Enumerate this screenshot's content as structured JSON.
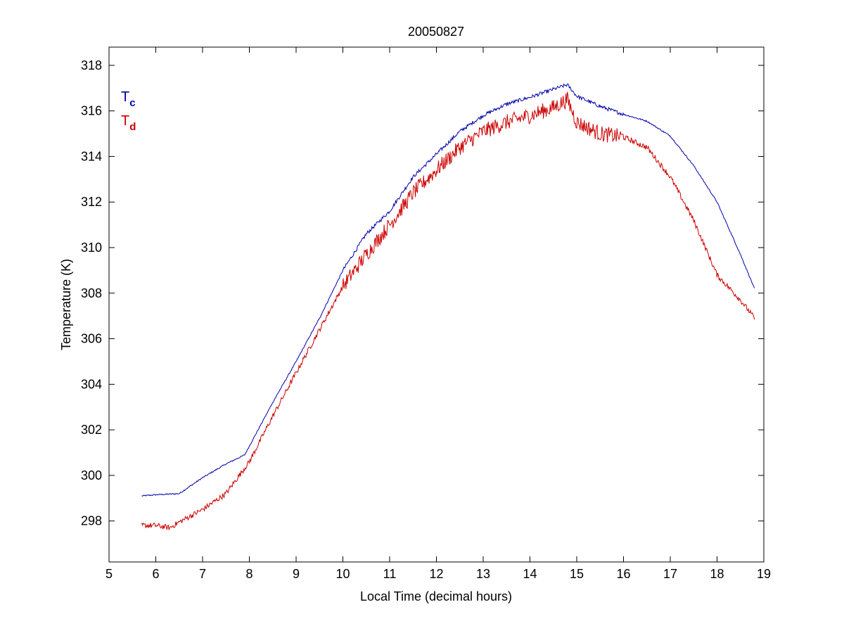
{
  "chart_data": {
    "type": "line",
    "title": "20050827",
    "xlabel": "Local Time (decimal hours)",
    "ylabel": "Temperature (K)",
    "xlim": [
      5,
      19
    ],
    "ylim": [
      296.2,
      318.8
    ],
    "xticks": [
      5,
      6,
      7,
      8,
      9,
      10,
      11,
      12,
      13,
      14,
      15,
      16,
      17,
      18,
      19
    ],
    "yticks": [
      298,
      300,
      302,
      304,
      306,
      308,
      310,
      312,
      314,
      316,
      318
    ],
    "grid": false,
    "legend": {
      "placement": "top-left",
      "entries": [
        {
          "main": "T",
          "sub": "c",
          "color": "#0000aa"
        },
        {
          "main": "T",
          "sub": "d",
          "color": "#cc0000"
        }
      ]
    },
    "series": [
      {
        "label": "Tc",
        "color": "#0000aa",
        "noise": 0.08,
        "x": [
          5.7,
          6.0,
          6.5,
          7.0,
          7.5,
          7.9,
          8.5,
          9.0,
          9.5,
          10.0,
          10.5,
          11.0,
          11.5,
          12.0,
          12.5,
          13.0,
          13.5,
          14.0,
          14.5,
          14.8,
          15.0,
          15.5,
          16.0,
          16.5,
          17.0,
          17.5,
          18.0,
          18.5,
          18.8
        ],
        "y": [
          299.1,
          299.15,
          299.2,
          299.9,
          300.5,
          300.9,
          303.2,
          305.0,
          306.9,
          309.0,
          310.6,
          311.6,
          313.1,
          314.1,
          315.1,
          315.8,
          316.3,
          316.6,
          316.95,
          317.15,
          316.65,
          316.2,
          315.85,
          315.55,
          314.9,
          313.6,
          312.0,
          309.7,
          308.2
        ]
      },
      {
        "label": "Td",
        "color": "#cc0000",
        "noise": 0.35,
        "x": [
          5.7,
          6.0,
          6.3,
          6.5,
          7.0,
          7.5,
          8.0,
          8.5,
          9.0,
          9.5,
          10.0,
          10.5,
          11.0,
          11.5,
          12.0,
          12.5,
          13.0,
          13.5,
          14.0,
          14.5,
          14.8,
          15.0,
          15.5,
          16.0,
          16.5,
          17.0,
          17.5,
          18.0,
          18.5,
          18.8
        ],
        "y": [
          297.8,
          297.8,
          297.7,
          297.95,
          298.5,
          299.2,
          300.6,
          302.6,
          304.5,
          306.4,
          308.3,
          309.7,
          311.0,
          312.4,
          313.4,
          314.4,
          315.1,
          315.5,
          315.8,
          316.15,
          316.5,
          315.5,
          315.0,
          314.85,
          314.4,
          313.1,
          311.2,
          308.8,
          307.7,
          306.9
        ]
      }
    ]
  }
}
